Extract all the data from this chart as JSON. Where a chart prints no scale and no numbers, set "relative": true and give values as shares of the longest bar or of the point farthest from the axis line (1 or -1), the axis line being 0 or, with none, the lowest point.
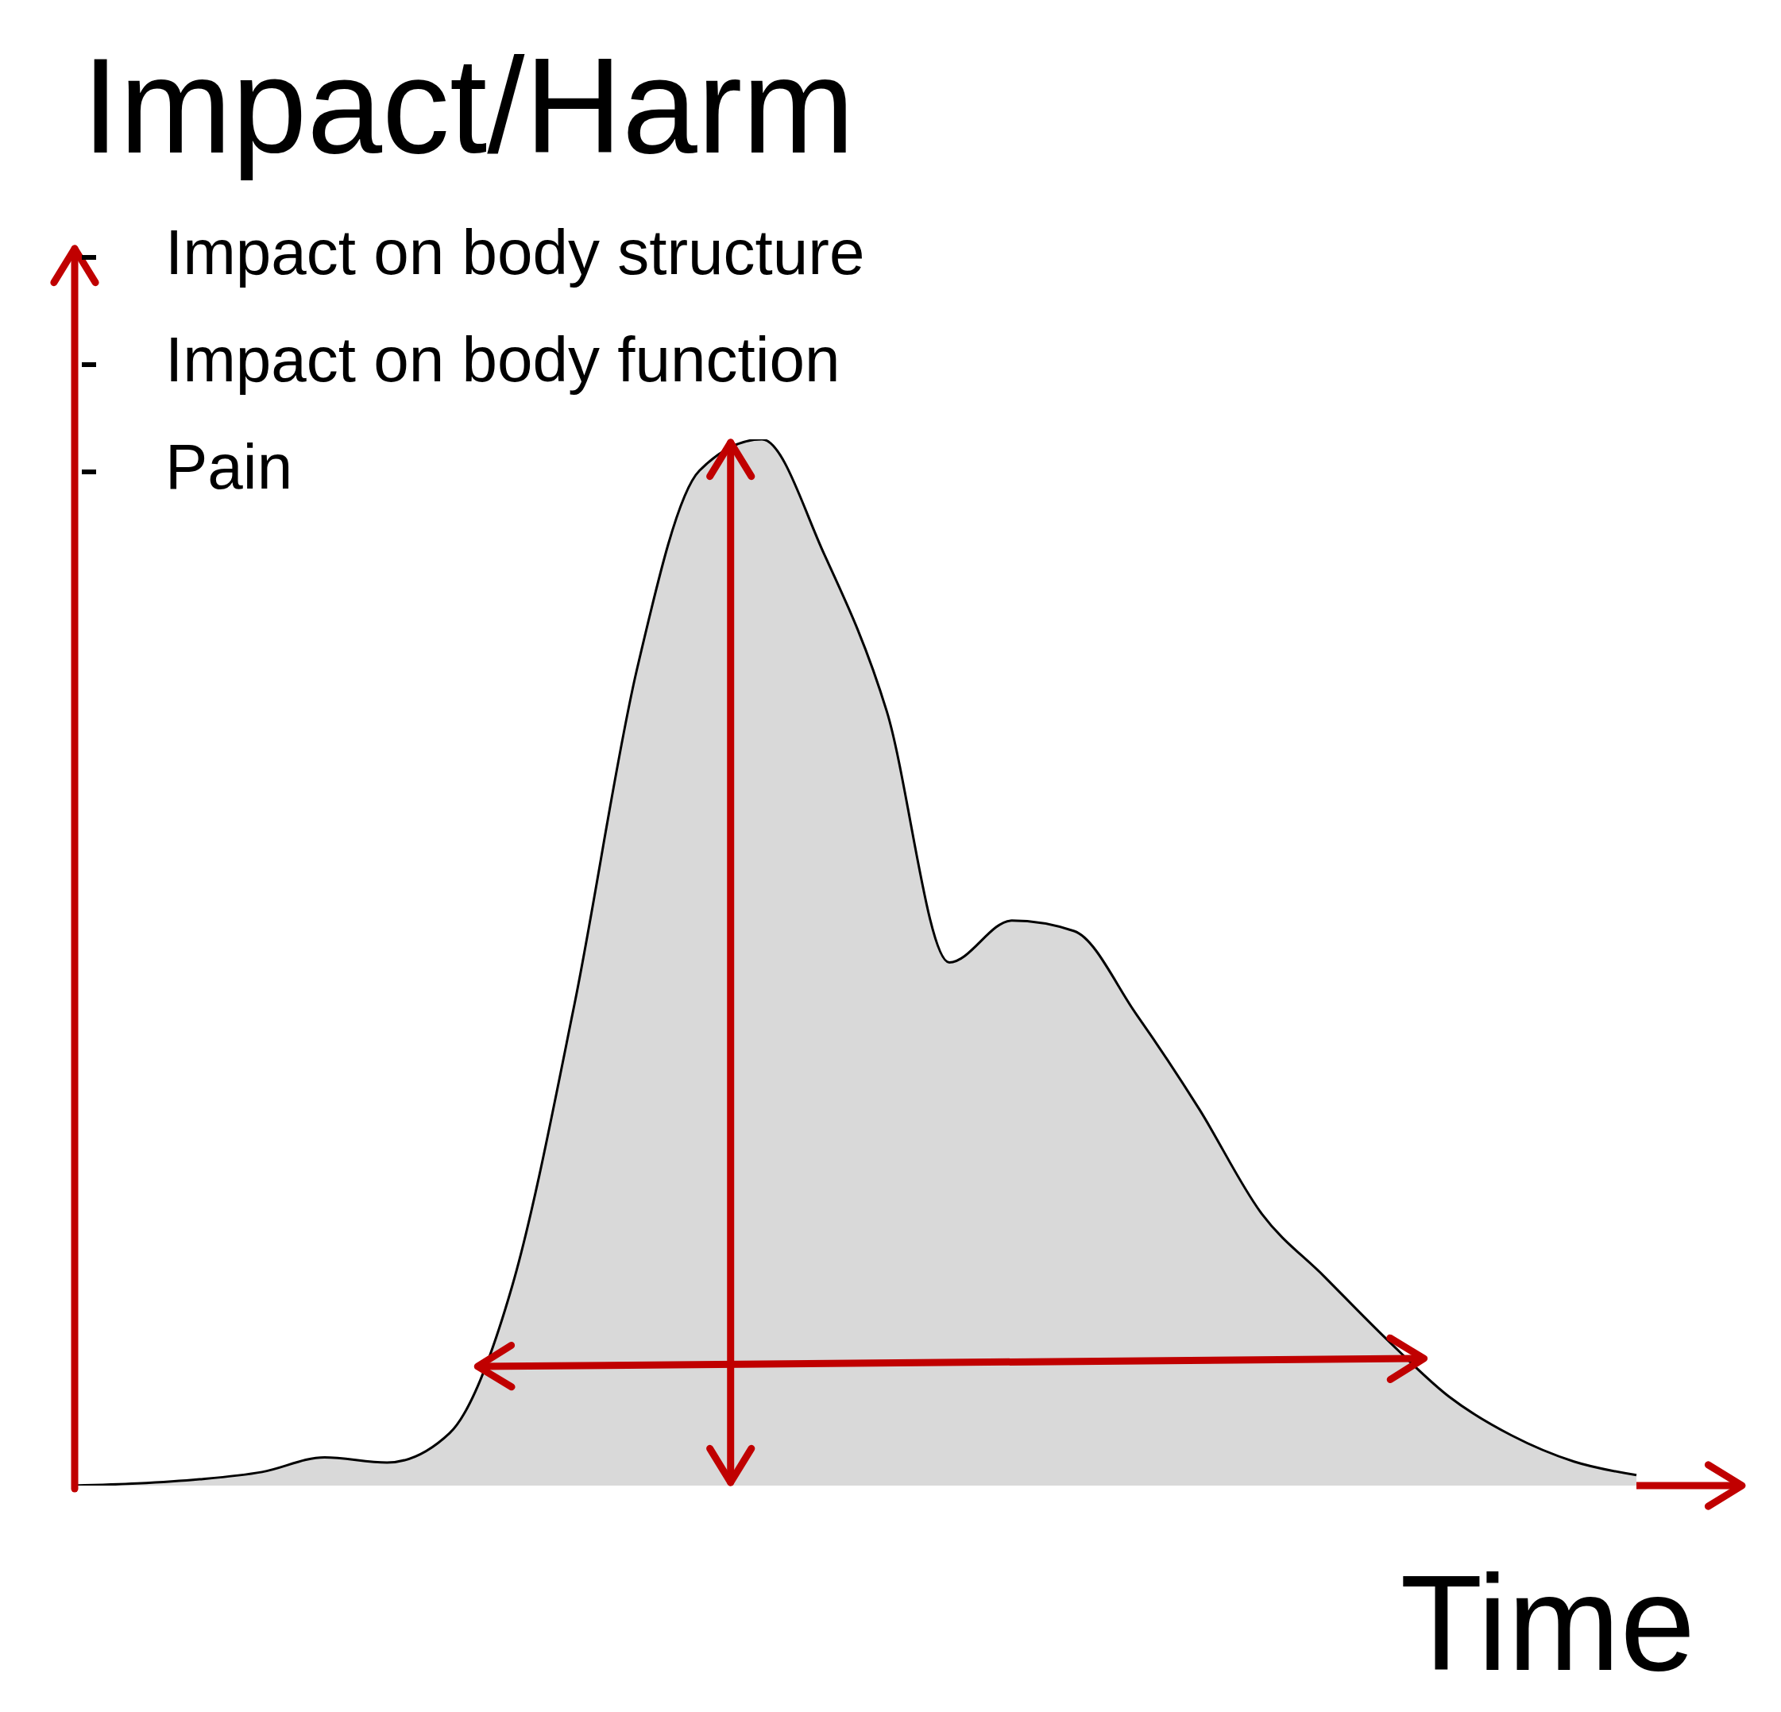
{
  "chart_data": {
    "type": "area",
    "relative": true,
    "ylabel": "Impact/Harm",
    "xlabel": "Time",
    "annotations": [
      "Impact on body structure",
      "Impact on body function",
      "Pain"
    ],
    "categories": [
      null,
      null,
      null,
      null,
      null,
      null,
      null,
      null,
      null,
      null,
      null,
      null,
      null,
      null,
      null,
      null,
      null,
      null,
      null,
      null,
      null,
      null,
      null,
      null,
      null,
      null
    ],
    "values": [
      0,
      0.002,
      0.006,
      0.013,
      0.027,
      0.022,
      0.05,
      0.19,
      0.46,
      0.78,
      0.97,
      1,
      0.89,
      0.74,
      0.5,
      0.54,
      0.53,
      0.45,
      0.36,
      0.26,
      0.2,
      0.14,
      0.085,
      0.048,
      0.023,
      0.01
    ],
    "color": "#d9d9d9"
  }
}
